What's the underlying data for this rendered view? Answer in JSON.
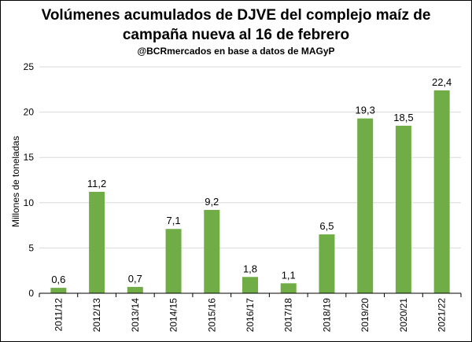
{
  "chart_data": {
    "type": "bar",
    "title_line1": "Volúmenes acumulados de DJVE del complejo maíz de",
    "title_line2": "campaña nueva al 16 de febrero",
    "subtitle": "@BCRmercados en base a datos de MAGyP",
    "ylabel": "Millones de toneladas",
    "xlabel": "",
    "ylim": [
      0,
      25
    ],
    "yticks": [
      0,
      5,
      10,
      15,
      20,
      25
    ],
    "grid": true,
    "bar_color": "#70ad47",
    "categories": [
      "2011/12",
      "2012/13",
      "2013/14",
      "2014/15",
      "2015/16",
      "2016/17",
      "2017/18",
      "2018/19",
      "2019/20",
      "2020/21",
      "2021/22"
    ],
    "values": [
      0.6,
      11.2,
      0.7,
      7.1,
      9.2,
      1.8,
      1.1,
      6.5,
      19.3,
      18.5,
      22.4
    ],
    "value_labels": [
      "0,6",
      "11,2",
      "0,7",
      "7,1",
      "9,2",
      "1,8",
      "1,1",
      "6,5",
      "19,3",
      "18,5",
      "22,4"
    ]
  }
}
